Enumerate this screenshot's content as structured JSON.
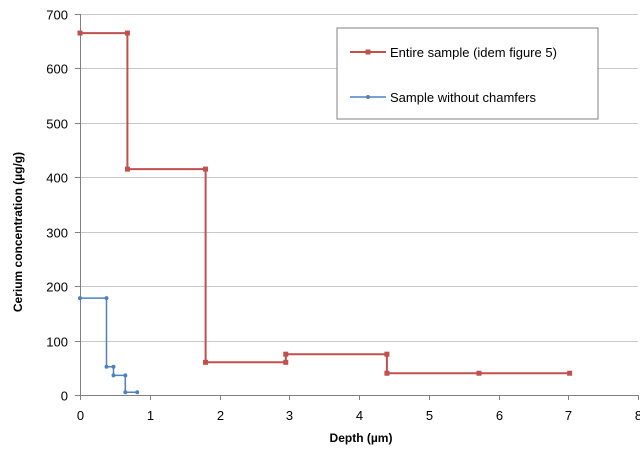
{
  "chart_data": {
    "type": "line",
    "title": "",
    "xlabel": "Depth (µm)",
    "ylabel": "Cerium concentration (µg/g)",
    "xlim": [
      0,
      8
    ],
    "ylim": [
      0,
      700
    ],
    "x_ticks": [
      0,
      1,
      2,
      3,
      4,
      5,
      6,
      7,
      8
    ],
    "y_ticks": [
      0,
      100,
      200,
      300,
      400,
      500,
      600,
      700
    ],
    "grid": "horizontal",
    "legend_position": "top-right",
    "series": [
      {
        "name": "Entire sample (idem figure 5)",
        "color": "#c0504d",
        "marker": "square",
        "points": [
          [
            0,
            665
          ],
          [
            0.68,
            665
          ],
          [
            0.68,
            415
          ],
          [
            1.8,
            415
          ],
          [
            1.8,
            60
          ],
          [
            2.95,
            60
          ],
          [
            2.95,
            75
          ],
          [
            4.4,
            75
          ],
          [
            4.4,
            40
          ],
          [
            5.72,
            40
          ],
          [
            7.02,
            40
          ]
        ]
      },
      {
        "name": "Sample without chamfers",
        "color": "#4f81bd",
        "marker": "dot",
        "points": [
          [
            0,
            178
          ],
          [
            0.38,
            178
          ],
          [
            0.38,
            52
          ],
          [
            0.48,
            52
          ],
          [
            0.48,
            36
          ],
          [
            0.65,
            36
          ],
          [
            0.65,
            5
          ],
          [
            0.82,
            5
          ]
        ]
      }
    ]
  }
}
